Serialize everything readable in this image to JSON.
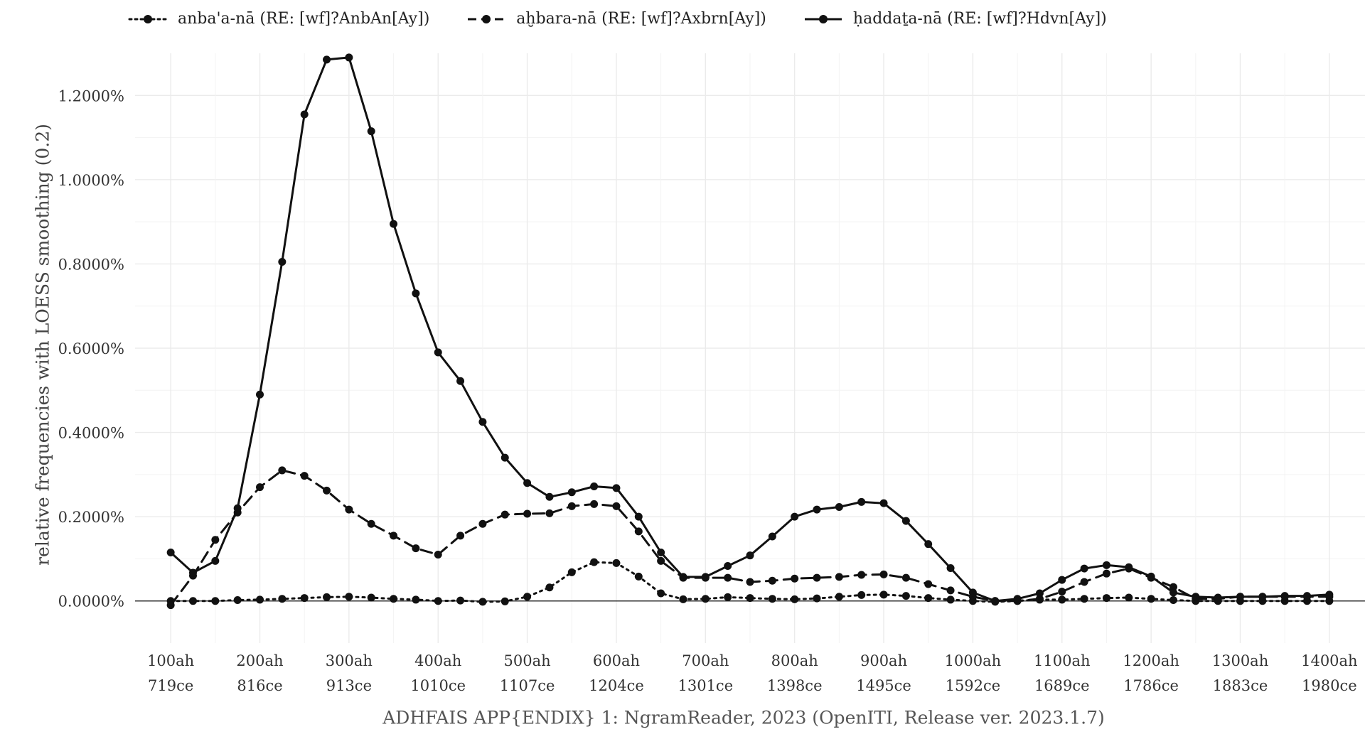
{
  "chart_data": {
    "type": "line",
    "ylabel": "relative frequencies with LOESS smoothing (0.2)",
    "caption": "ADHFAIS APP{ENDIX} 1: NgramReader, 2023 (OpenITI, Release ver. 2023.1.7)",
    "ylim": [
      -0.1,
      1.3
    ],
    "xlim": [
      60,
      1440
    ],
    "grid": true,
    "legend_position": "top",
    "y_ticks": [
      {
        "value": 0.0,
        "label": "0.0000%"
      },
      {
        "value": 0.2,
        "label": "0.2000%"
      },
      {
        "value": 0.4,
        "label": "0.4000%"
      },
      {
        "value": 0.6,
        "label": "0.6000%"
      },
      {
        "value": 0.8,
        "label": "0.8000%"
      },
      {
        "value": 1.0,
        "label": "1.0000%"
      },
      {
        "value": 1.2,
        "label": "1.2000%"
      }
    ],
    "x_ticks": [
      {
        "value": 100,
        "ah": "100ah",
        "ce": "719ce"
      },
      {
        "value": 200,
        "ah": "200ah",
        "ce": "816ce"
      },
      {
        "value": 300,
        "ah": "300ah",
        "ce": "913ce"
      },
      {
        "value": 400,
        "ah": "400ah",
        "ce": "1010ce"
      },
      {
        "value": 500,
        "ah": "500ah",
        "ce": "1107ce"
      },
      {
        "value": 600,
        "ah": "600ah",
        "ce": "1204ce"
      },
      {
        "value": 700,
        "ah": "700ah",
        "ce": "1301ce"
      },
      {
        "value": 800,
        "ah": "800ah",
        "ce": "1398ce"
      },
      {
        "value": 900,
        "ah": "900ah",
        "ce": "1495ce"
      },
      {
        "value": 1000,
        "ah": "1000ah",
        "ce": "1592ce"
      },
      {
        "value": 1100,
        "ah": "1100ah",
        "ce": "1689ce"
      },
      {
        "value": 1200,
        "ah": "1200ah",
        "ce": "1786ce"
      },
      {
        "value": 1300,
        "ah": "1300ah",
        "ce": "1883ce"
      },
      {
        "value": 1400,
        "ah": "1400ah",
        "ce": "1980ce"
      }
    ],
    "x": [
      100,
      125,
      150,
      175,
      200,
      225,
      250,
      275,
      300,
      325,
      350,
      375,
      400,
      425,
      450,
      475,
      500,
      525,
      550,
      575,
      600,
      625,
      650,
      675,
      700,
      725,
      750,
      775,
      800,
      825,
      850,
      875,
      900,
      925,
      950,
      975,
      1000,
      1025,
      1050,
      1075,
      1100,
      1125,
      1150,
      1175,
      1200,
      1225,
      1250,
      1275,
      1300,
      1325,
      1350,
      1375,
      1400
    ],
    "series": [
      {
        "name": "anba'a-nā (RE: [wf]?AnbAn[Ay])",
        "style": "dotted",
        "values": [
          0.0,
          0.0,
          0.0,
          0.002,
          0.003,
          0.005,
          0.007,
          0.009,
          0.01,
          0.008,
          0.005,
          0.003,
          0.0,
          0.001,
          -0.002,
          -0.001,
          0.01,
          0.032,
          0.068,
          0.092,
          0.09,
          0.058,
          0.018,
          0.004,
          0.005,
          0.009,
          0.007,
          0.005,
          0.004,
          0.006,
          0.01,
          0.014,
          0.015,
          0.012,
          0.007,
          0.003,
          0.0,
          -0.002,
          0.0,
          0.003,
          0.003,
          0.005,
          0.007,
          0.008,
          0.005,
          0.002,
          0.0,
          0.0,
          0.0,
          0.0,
          0.0,
          0.0,
          0.0
        ]
      },
      {
        "name": "aḫbara-nā (RE: [wf]?Axbrn[Ay])",
        "style": "dashed",
        "values": [
          -0.01,
          0.06,
          0.145,
          0.21,
          0.27,
          0.31,
          0.297,
          0.262,
          0.217,
          0.183,
          0.155,
          0.125,
          0.11,
          0.155,
          0.183,
          0.205,
          0.207,
          0.208,
          0.225,
          0.23,
          0.225,
          0.165,
          0.095,
          0.055,
          0.055,
          0.055,
          0.045,
          0.048,
          0.053,
          0.055,
          0.057,
          0.062,
          0.063,
          0.055,
          0.04,
          0.025,
          0.01,
          0.0,
          0.0,
          0.005,
          0.022,
          0.045,
          0.065,
          0.077,
          0.055,
          0.033,
          0.005,
          0.005,
          0.01,
          0.01,
          0.01,
          0.01,
          0.01
        ]
      },
      {
        "name": "ḥaddaṯa-nā (RE: [wf]?Hdvn[Ay])",
        "style": "solid",
        "values": [
          0.115,
          0.067,
          0.095,
          0.22,
          0.49,
          0.805,
          1.155,
          1.285,
          1.29,
          1.115,
          0.895,
          0.73,
          0.59,
          0.522,
          0.425,
          0.34,
          0.28,
          0.247,
          0.258,
          0.272,
          0.268,
          0.2,
          0.115,
          0.057,
          0.057,
          0.083,
          0.108,
          0.153,
          0.2,
          0.217,
          0.223,
          0.235,
          0.232,
          0.19,
          0.135,
          0.078,
          0.02,
          0.0,
          0.005,
          0.018,
          0.05,
          0.077,
          0.085,
          0.08,
          0.058,
          0.02,
          0.01,
          0.008,
          0.01,
          0.01,
          0.012,
          0.012,
          0.015
        ]
      }
    ]
  }
}
